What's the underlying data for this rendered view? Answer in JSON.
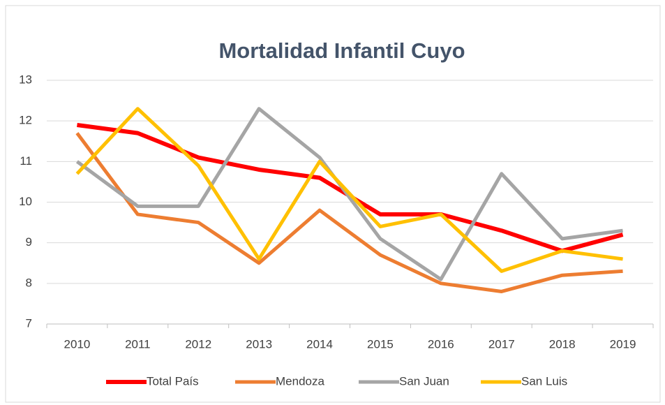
{
  "chart_data": {
    "type": "line",
    "title": "Mortalidad Infantil Cuyo",
    "categories": [
      "2010",
      "2011",
      "2012",
      "2013",
      "2014",
      "2015",
      "2016",
      "2017",
      "2018",
      "2019"
    ],
    "series": [
      {
        "name": "Total País",
        "color": "#ff0000",
        "values": [
          11.9,
          11.7,
          11.1,
          10.8,
          10.6,
          9.7,
          9.7,
          9.3,
          8.8,
          9.2
        ]
      },
      {
        "name": "Mendoza",
        "color": "#ed7d31",
        "values": [
          11.7,
          9.7,
          9.5,
          8.5,
          9.8,
          8.7,
          8.0,
          7.8,
          8.2,
          8.3
        ]
      },
      {
        "name": "San Juan",
        "color": "#a5a5a5",
        "values": [
          11.0,
          9.9,
          9.9,
          12.3,
          11.1,
          9.1,
          8.1,
          10.7,
          9.1,
          9.3
        ]
      },
      {
        "name": "San Luis",
        "color": "#ffc000",
        "values": [
          10.7,
          12.3,
          10.9,
          8.6,
          11.0,
          9.4,
          9.7,
          8.3,
          8.8,
          8.6
        ]
      }
    ],
    "ylim": [
      7,
      13
    ],
    "yticks": [
      7,
      8,
      9,
      10,
      11,
      12,
      13
    ],
    "grid": true,
    "legend": "bottom"
  }
}
